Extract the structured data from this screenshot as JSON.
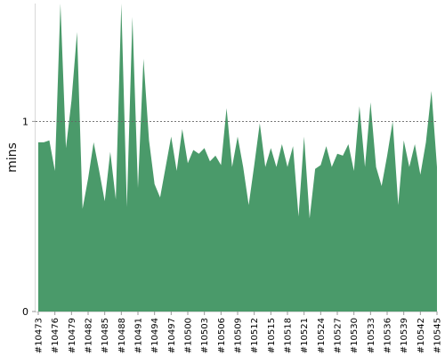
{
  "chart_data": {
    "type": "area",
    "ylabel": "mins",
    "ylim": [
      0,
      1.62
    ],
    "y_ticks": [
      0,
      1
    ],
    "reference_line": 1,
    "color": "#4a9a6a",
    "x_tick_labels": [
      "#10473",
      "#10476",
      "#10479",
      "#10482",
      "#10485",
      "#10488",
      "#10491",
      "#10494",
      "#10497",
      "#10500",
      "#10503",
      "#10506",
      "#10509",
      "#10512",
      "#10515",
      "#10518",
      "#10521",
      "#10524",
      "#10527",
      "#10530",
      "#10533",
      "#10536",
      "#10539",
      "#10542",
      "#10545"
    ],
    "x_start": 10473,
    "values": [
      0.89,
      0.89,
      0.9,
      0.74,
      1.62,
      0.86,
      1.11,
      1.47,
      0.54,
      0.7,
      0.89,
      0.74,
      0.58,
      0.84,
      0.59,
      1.62,
      0.55,
      1.55,
      0.65,
      1.33,
      0.9,
      0.67,
      0.6,
      0.76,
      0.92,
      0.74,
      0.96,
      0.78,
      0.85,
      0.83,
      0.86,
      0.79,
      0.82,
      0.77,
      1.07,
      0.76,
      0.92,
      0.76,
      0.56,
      0.77,
      0.99,
      0.76,
      0.86,
      0.76,
      0.88,
      0.76,
      0.87,
      0.5,
      0.92,
      0.49,
      0.75,
      0.77,
      0.87,
      0.76,
      0.83,
      0.82,
      0.88,
      0.74,
      1.08,
      0.76,
      1.1,
      0.76,
      0.66,
      0.82,
      1.0,
      0.56,
      0.9,
      0.76,
      0.88,
      0.72,
      0.89,
      1.16,
      0.76
    ]
  }
}
